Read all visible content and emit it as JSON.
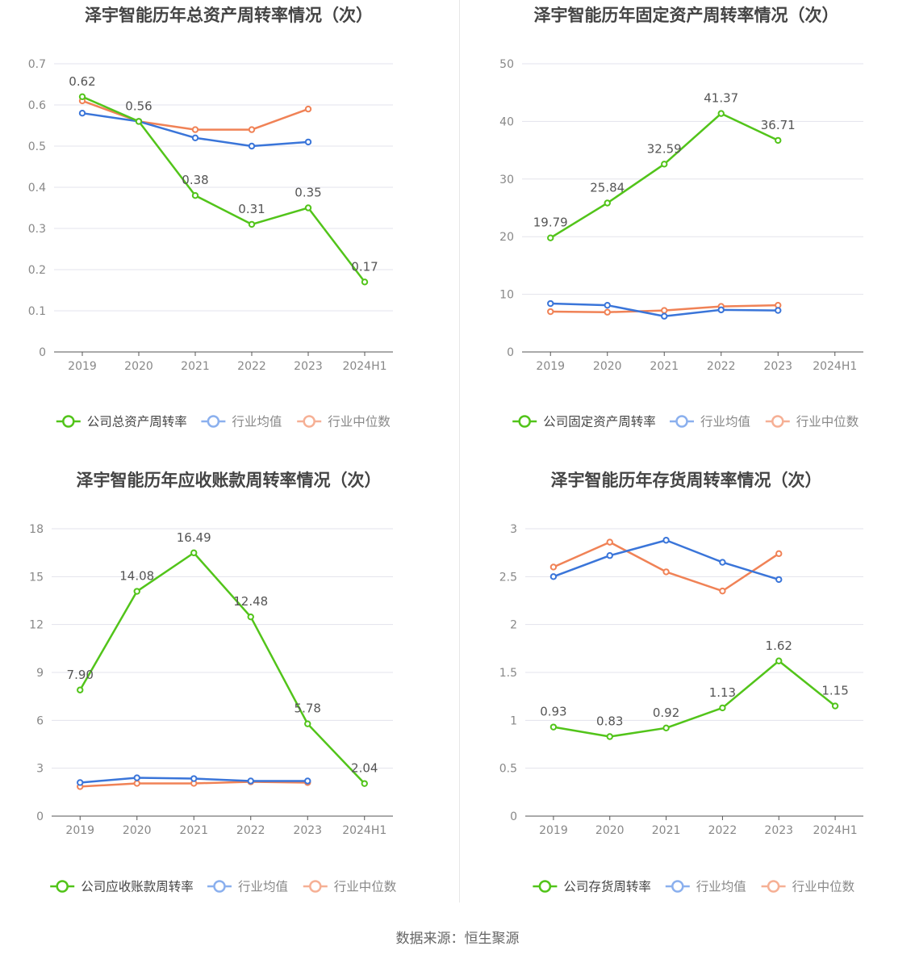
{
  "source_text": "数据来源：恒生聚源",
  "chart_data": [
    {
      "type": "line",
      "title": "泽宇智能历年总资产周转率情况（次）",
      "categories": [
        "2019",
        "2020",
        "2021",
        "2022",
        "2023",
        "2024H1"
      ],
      "ylim": [
        0,
        0.7
      ],
      "yticks": [
        0,
        0.1,
        0.2,
        0.3,
        0.4,
        0.5,
        0.6,
        0.7
      ],
      "ytick_labels": [
        "0",
        "0.1",
        "0.2",
        "0.3",
        "0.4",
        "0.5",
        "0.6",
        "0.7"
      ],
      "grid": true,
      "legend_position": "bottom",
      "series": [
        {
          "name": "公司总资产周转率",
          "color": "#52c41a",
          "values": [
            0.62,
            0.56,
            0.38,
            0.31,
            0.35,
            0.17
          ],
          "labels": [
            "0.62",
            "0.56",
            "0.38",
            "0.31",
            "0.35",
            "0.17"
          ]
        },
        {
          "name": "行业均值",
          "color": "#3a75d9",
          "values": [
            0.58,
            0.56,
            0.52,
            0.5,
            0.51,
            null
          ]
        },
        {
          "name": "行业中位数",
          "color": "#f08256",
          "values": [
            0.61,
            0.56,
            0.54,
            0.54,
            0.59,
            null
          ]
        }
      ]
    },
    {
      "type": "line",
      "title": "泽宇智能历年固定资产周转率情况（次）",
      "categories": [
        "2019",
        "2020",
        "2021",
        "2022",
        "2023",
        "2024H1"
      ],
      "ylim": [
        0,
        50
      ],
      "yticks": [
        0,
        10,
        20,
        30,
        40,
        50
      ],
      "ytick_labels": [
        "0",
        "10",
        "20",
        "30",
        "40",
        "50"
      ],
      "grid": true,
      "legend_position": "bottom",
      "series": [
        {
          "name": "公司固定资产周转率",
          "color": "#52c41a",
          "values": [
            19.79,
            25.84,
            32.59,
            41.37,
            36.71,
            null
          ],
          "labels": [
            "19.79",
            "25.84",
            "32.59",
            "41.37",
            "36.71",
            ""
          ]
        },
        {
          "name": "行业均值",
          "color": "#3a75d9",
          "values": [
            8.4,
            8.1,
            6.2,
            7.3,
            7.2,
            null
          ]
        },
        {
          "name": "行业中位数",
          "color": "#f08256",
          "values": [
            7.0,
            6.9,
            7.2,
            7.9,
            8.1,
            null
          ]
        }
      ]
    },
    {
      "type": "line",
      "title": "泽宇智能历年应收账款周转率情况（次）",
      "categories": [
        "2019",
        "2020",
        "2021",
        "2022",
        "2023",
        "2024H1"
      ],
      "ylim": [
        0,
        18
      ],
      "yticks": [
        0,
        3,
        6,
        9,
        12,
        15,
        18
      ],
      "ytick_labels": [
        "0",
        "3",
        "6",
        "9",
        "12",
        "15",
        "18"
      ],
      "grid": true,
      "legend_position": "bottom",
      "series": [
        {
          "name": "公司应收账款周转率",
          "color": "#52c41a",
          "values": [
            7.9,
            14.08,
            16.49,
            12.48,
            5.78,
            2.04
          ],
          "labels": [
            "7.90",
            "14.08",
            "16.49",
            "12.48",
            "5.78",
            "2.04"
          ]
        },
        {
          "name": "行业均值",
          "color": "#3a75d9",
          "values": [
            2.1,
            2.4,
            2.35,
            2.2,
            2.2,
            null
          ]
        },
        {
          "name": "行业中位数",
          "color": "#f08256",
          "values": [
            1.85,
            2.05,
            2.05,
            2.15,
            2.1,
            null
          ]
        }
      ]
    },
    {
      "type": "line",
      "title": "泽宇智能历年存货周转率情况（次）",
      "categories": [
        "2019",
        "2020",
        "2021",
        "2022",
        "2023",
        "2024H1"
      ],
      "ylim": [
        0,
        3
      ],
      "yticks": [
        0,
        0.5,
        1,
        1.5,
        2,
        2.5,
        3
      ],
      "ytick_labels": [
        "0",
        "0.5",
        "1",
        "1.5",
        "2",
        "2.5",
        "3"
      ],
      "grid": true,
      "legend_position": "bottom",
      "series": [
        {
          "name": "公司存货周转率",
          "color": "#52c41a",
          "values": [
            0.93,
            0.83,
            0.92,
            1.13,
            1.62,
            1.15
          ],
          "labels": [
            "0.93",
            "0.83",
            "0.92",
            "1.13",
            "1.62",
            "1.15"
          ]
        },
        {
          "name": "行业均值",
          "color": "#3a75d9",
          "values": [
            2.5,
            2.72,
            2.88,
            2.65,
            2.47,
            null
          ]
        },
        {
          "name": "行业中位数",
          "color": "#f08256",
          "values": [
            2.6,
            2.86,
            2.55,
            2.35,
            2.74,
            null
          ]
        }
      ]
    }
  ]
}
